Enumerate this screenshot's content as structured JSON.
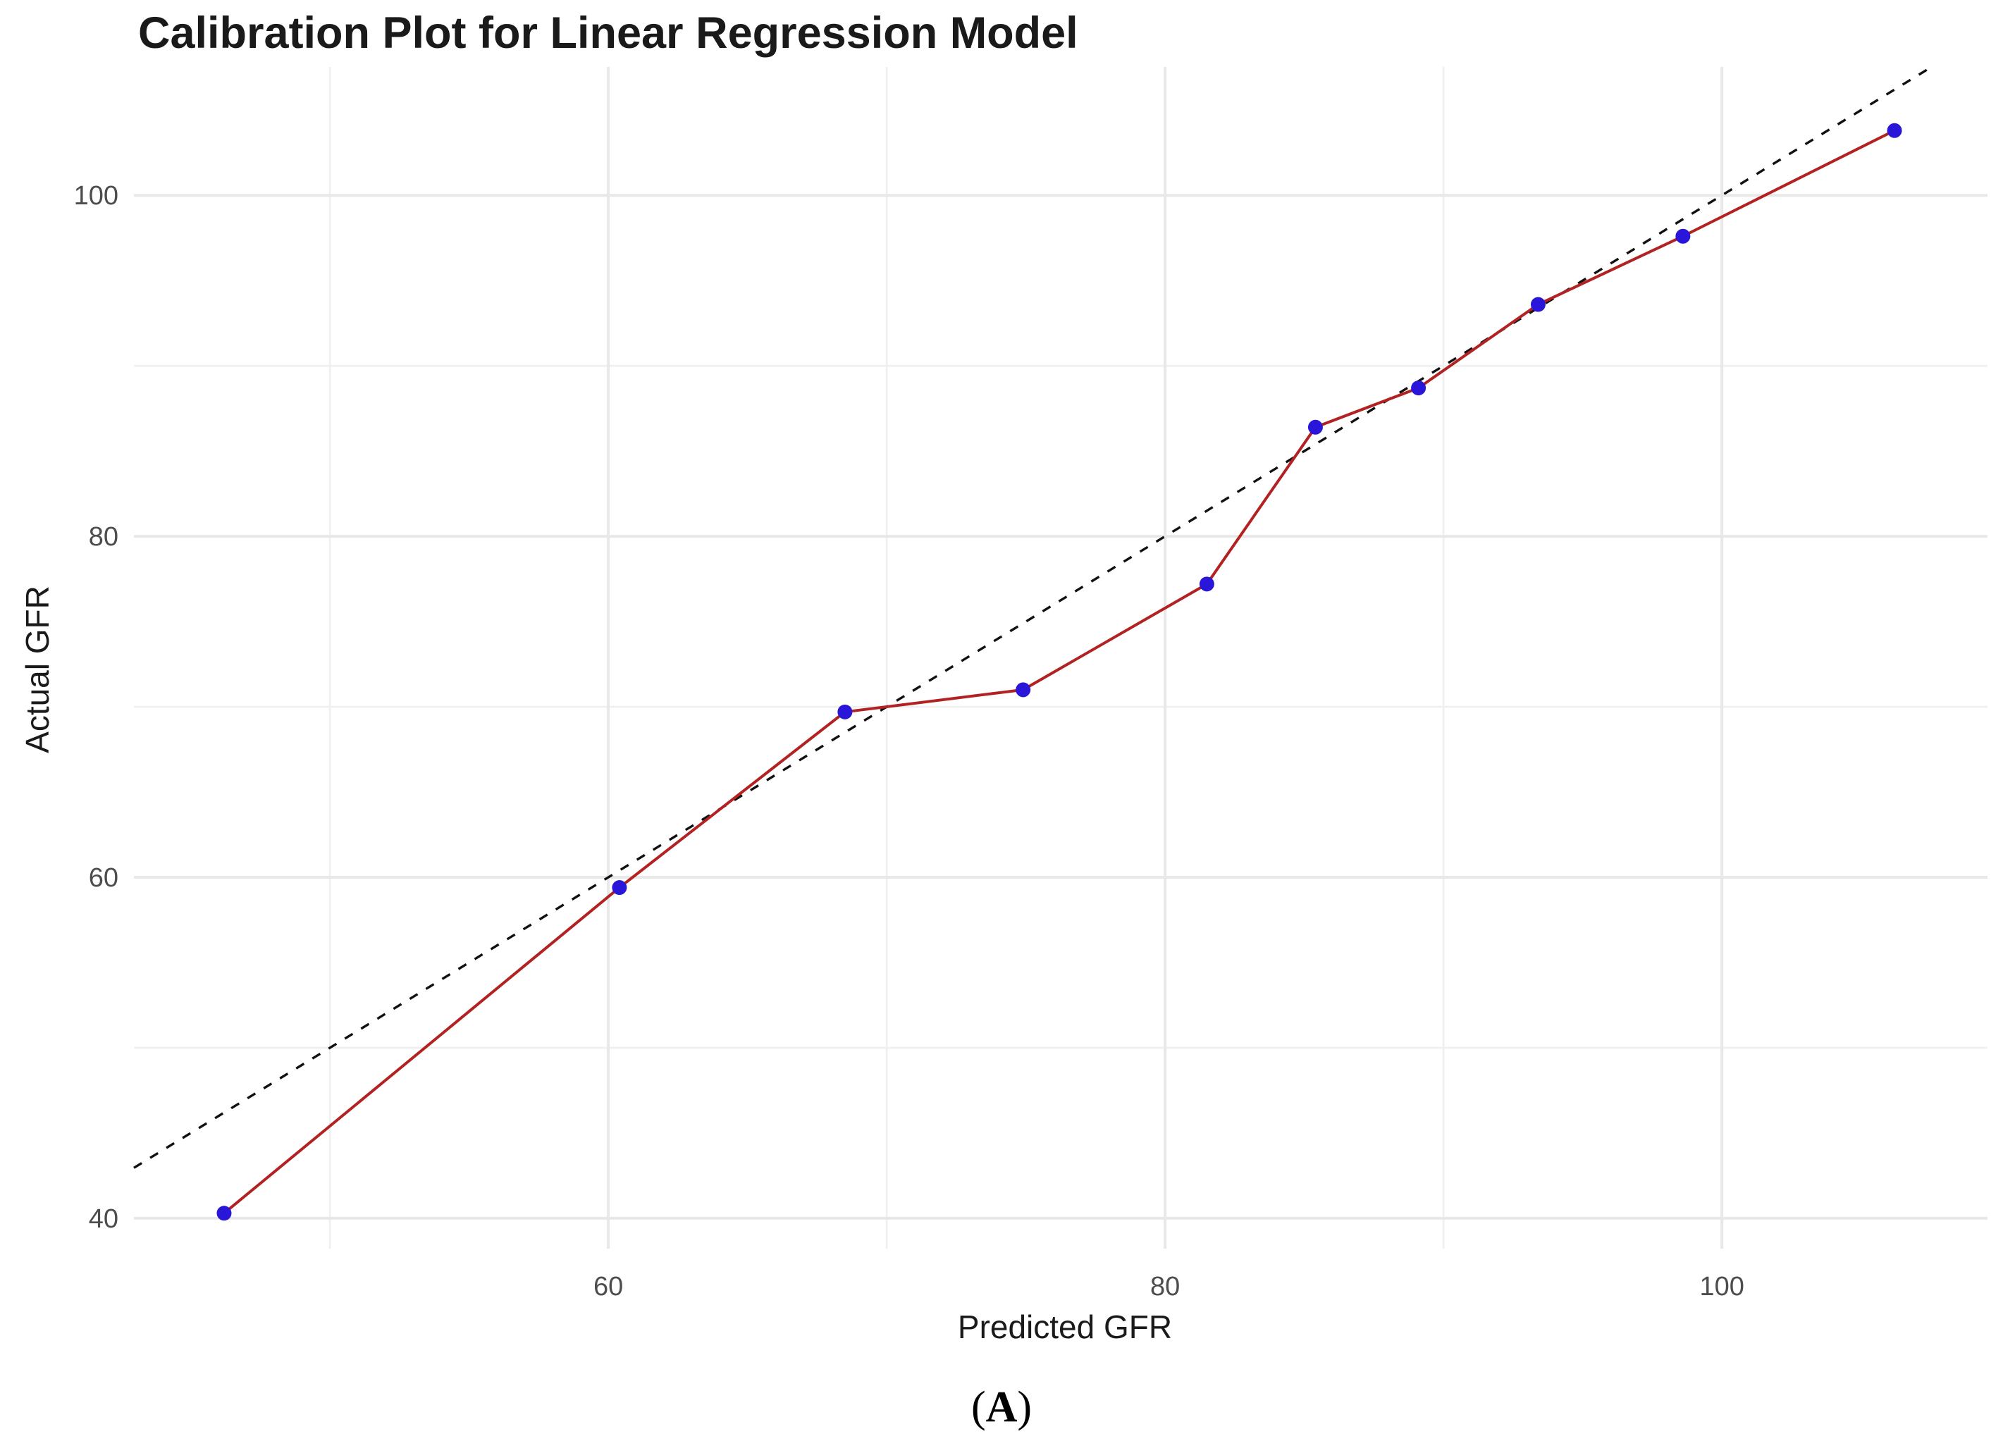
{
  "colors": {
    "background": "#ffffff",
    "grid_major": "#e8e8e8",
    "grid_minor": "#efefef",
    "calibration_line": "#b22222",
    "point_fill": "#2a16d8",
    "identity_line": "#111111",
    "tick_label": "#4d4d4d",
    "text": "#1a1a1a"
  },
  "chart_data": {
    "type": "line",
    "title": "Calibration Plot for Linear Regression Model",
    "xlabel": "Predicted GFR",
    "ylabel": "Actual GFR",
    "panel_label": {
      "prefix": "(",
      "letter": "A",
      "suffix": ")"
    },
    "xlim": [
      42.96,
      109.54
    ],
    "ylim": [
      38.22,
      107.53
    ],
    "x_ticks": {
      "major": [
        60,
        80,
        100
      ],
      "minor": [
        50,
        70,
        90
      ]
    },
    "y_ticks": {
      "major": [
        40,
        60,
        80,
        100
      ],
      "minor": [
        50,
        70,
        90
      ]
    },
    "grid": "major and minor light-gray gridlines, no axis lines, white background",
    "legend": "none",
    "series": [
      {
        "name": "calibration-curve",
        "type": "line_with_points",
        "color": "#b22222",
        "point_color": "#2a16d8",
        "x": [
          46.2,
          60.4,
          68.5,
          74.9,
          81.5,
          85.4,
          89.1,
          93.4,
          98.6,
          106.2
        ],
        "y": [
          40.3,
          59.4,
          69.7,
          71.0,
          77.2,
          86.4,
          88.7,
          93.6,
          97.6,
          103.8
        ]
      },
      {
        "name": "ideal-calibration-reference",
        "type": "identity_line",
        "equation": "y = x",
        "style": "dashed",
        "color": "#111111"
      }
    ]
  }
}
